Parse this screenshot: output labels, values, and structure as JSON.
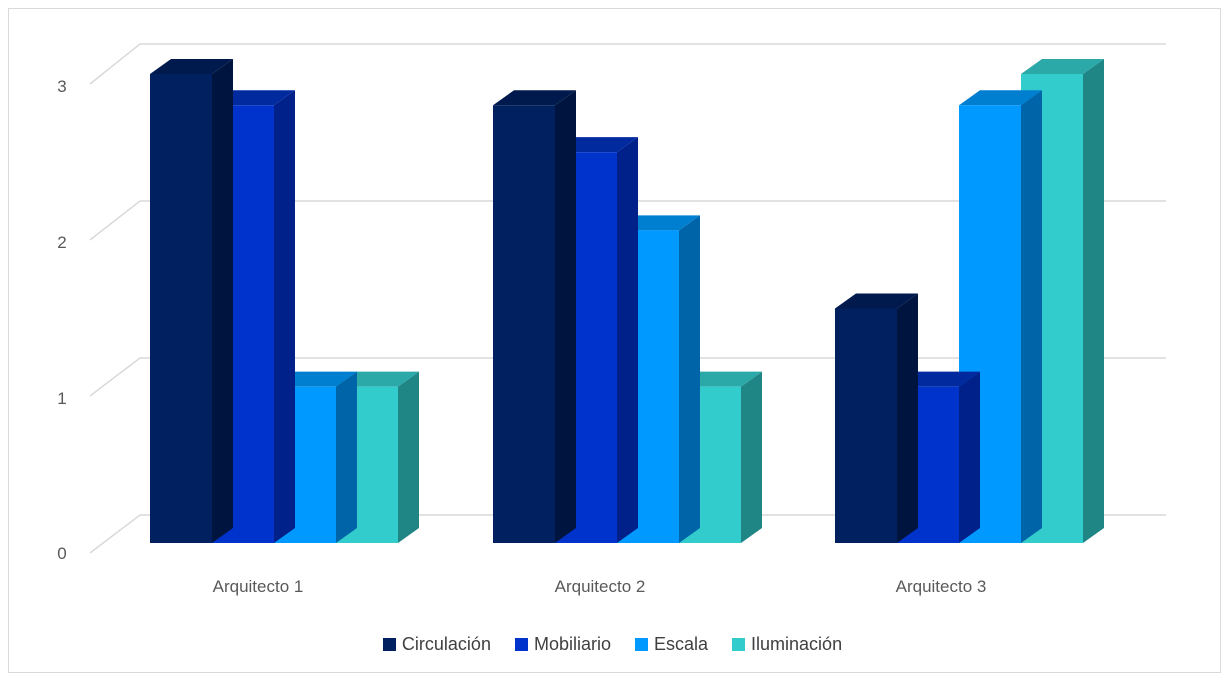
{
  "chart_data": {
    "type": "bar",
    "categories": [
      "Arquitecto 1",
      "Arquitecto 2",
      "Arquitecto 3"
    ],
    "series": [
      {
        "name": "Circulación",
        "values": [
          3,
          2.8,
          1.5
        ],
        "color": "#002060",
        "top": "#001a4d",
        "side": "#001440"
      },
      {
        "name": "Mobiliario",
        "values": [
          2.8,
          2.5,
          1
        ],
        "color": "#0033cc",
        "top": "#002a9e",
        "side": "#00208a"
      },
      {
        "name": "Escala",
        "values": [
          1,
          2,
          2.8
        ],
        "color": "#0099ff",
        "top": "#007fd1",
        "side": "#0064a8"
      },
      {
        "name": "Iluminación",
        "values": [
          1,
          1,
          3
        ],
        "color": "#33cccc",
        "top": "#2ba8a8",
        "side": "#1f8585"
      }
    ],
    "yticks": [
      "0",
      "1",
      "2",
      "3"
    ],
    "ylim": [
      0,
      3
    ],
    "grid": true,
    "legend": "bottom",
    "projection": "3d"
  }
}
